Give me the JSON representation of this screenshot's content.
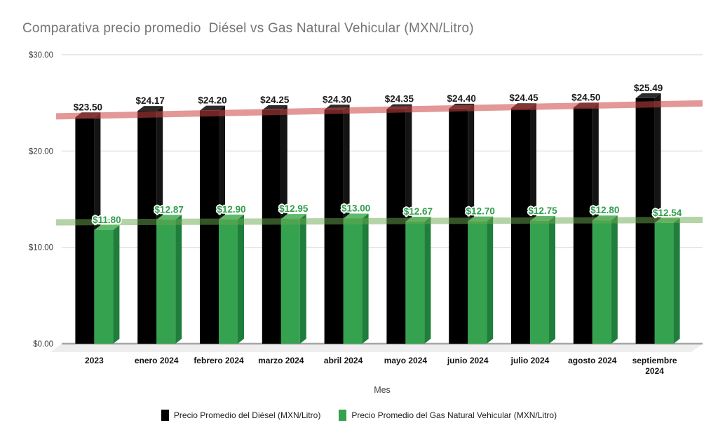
{
  "title": "Comparativa precio promedio  Diésel vs Gas Natural Vehicular (MXN/Litro)",
  "chart_data": {
    "type": "bar",
    "title": "Comparativa precio promedio  Diésel vs Gas Natural Vehicular (MXN/Litro)",
    "xlabel": "Mes",
    "ylabel": "",
    "ylim": [
      0,
      30
    ],
    "y_ticks": [
      {
        "value": 0,
        "label": "$0.00"
      },
      {
        "value": 10,
        "label": "$10.00"
      },
      {
        "value": 20,
        "label": "$20.00"
      },
      {
        "value": 30,
        "label": "$30.00"
      }
    ],
    "grid": true,
    "legend_position": "bottom",
    "value_label_prefix": "$",
    "categories": [
      "2023",
      "enero 2024",
      "febrero 2024",
      "marzo 2024",
      "abril 2024",
      "mayo 2024",
      "junio 2024",
      "julio 2024",
      "agosto 2024",
      "septiembre\n2024"
    ],
    "series": [
      {
        "id": "diesel",
        "name": "Precio Promedio del Diésel (MXN/Litro)",
        "color": "#000000",
        "color_top": "#2b2b2b",
        "color_side": "#141414",
        "label_color": "#1a1a1a",
        "values": [
          23.5,
          24.17,
          24.2,
          24.25,
          24.3,
          24.35,
          24.4,
          24.45,
          24.5,
          25.49
        ]
      },
      {
        "id": "gas-natural",
        "name": "Precio Promedio del Gas Natural Vehicular (MXN/Litro)",
        "color": "#35a24f",
        "color_top": "#5fba6e",
        "color_side": "#1f7e3b",
        "label_color": "#2f9e4b",
        "values": [
          11.8,
          12.87,
          12.9,
          12.95,
          13.0,
          12.67,
          12.7,
          12.75,
          12.8,
          12.54
        ]
      }
    ],
    "trendlines": [
      {
        "series": "diesel",
        "start_value": 23.6,
        "end_value": 24.95,
        "color": "rgba(204,65,65,0.55)"
      },
      {
        "series": "gas-natural",
        "start_value": 12.6,
        "end_value": 12.85,
        "color": "rgba(106,168,79,0.5)"
      }
    ]
  }
}
